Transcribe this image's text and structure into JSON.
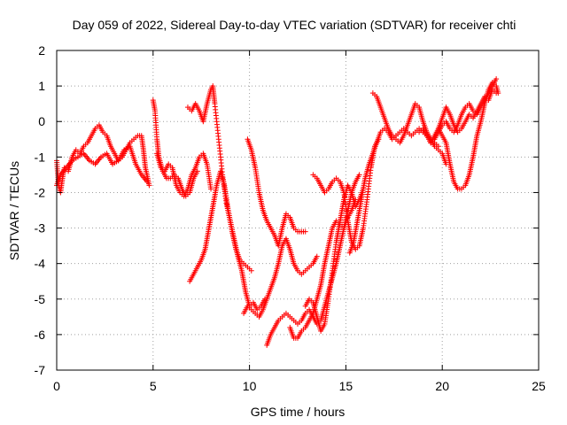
{
  "chart_data": {
    "type": "scatter",
    "title": "Day 059 of 2022, Sidereal Day-to-day VTEC variation (SDTVAR) for receiver chti",
    "xlabel": "GPS time / hours",
    "ylabel": "SDTVAR / TECUs",
    "xlim": [
      0,
      25
    ],
    "ylim": [
      -7,
      2
    ],
    "xticks": [
      0,
      5,
      10,
      15,
      20,
      25
    ],
    "yticks": [
      -7,
      -6,
      -5,
      -4,
      -3,
      -2,
      -1,
      0,
      1,
      2
    ],
    "grid": true,
    "marker": "+",
    "color": "#ff0000",
    "series": [
      {
        "x": [
          0.0,
          0.1,
          0.2,
          0.3,
          0.4,
          0.6,
          0.8,
          1.0,
          1.2,
          1.4,
          1.6,
          1.8,
          2.0,
          2.2,
          2.4,
          2.6,
          2.8,
          3.0,
          3.2,
          3.4,
          3.6,
          3.8,
          4.0,
          4.2,
          4.4,
          4.5,
          4.6,
          4.8
        ],
        "y": [
          -1.1,
          -1.8,
          -2.0,
          -1.6,
          -1.3,
          -1.4,
          -1.0,
          -0.8,
          -0.9,
          -0.7,
          -0.6,
          -0.4,
          -0.2,
          -0.1,
          -0.3,
          -0.4,
          -0.7,
          -0.9,
          -1.1,
          -1.0,
          -0.8,
          -0.6,
          -0.5,
          -0.4,
          -0.4,
          -0.8,
          -1.3,
          -1.8
        ]
      },
      {
        "x": [
          0.0,
          0.2,
          0.5,
          0.8,
          1.1,
          1.4,
          1.7,
          2.0,
          2.3,
          2.6,
          2.9,
          3.2,
          3.5,
          3.8,
          4.1,
          4.4,
          4.7
        ],
        "y": [
          -1.8,
          -1.5,
          -1.3,
          -1.1,
          -1.0,
          -0.9,
          -1.1,
          -1.2,
          -1.0,
          -0.9,
          -1.2,
          -1.1,
          -0.8,
          -0.7,
          -1.2,
          -1.5,
          -1.7
        ]
      },
      {
        "x": [
          5.0,
          5.1,
          5.2,
          5.3,
          5.5,
          5.7,
          5.9,
          6.1,
          6.3,
          6.5,
          6.7,
          6.9,
          7.1,
          7.3
        ],
        "y": [
          0.6,
          0.3,
          -0.5,
          -1.0,
          -1.4,
          -1.6,
          -1.6,
          -1.5,
          -1.6,
          -1.9,
          -2.1,
          -2.0,
          -1.6,
          -1.4
        ]
      },
      {
        "x": [
          5.2,
          5.4,
          5.6,
          5.8,
          6.0,
          6.2,
          6.4,
          6.6,
          6.8,
          7.0,
          7.2,
          7.4,
          7.6,
          7.8,
          8.0
        ],
        "y": [
          -0.9,
          -1.3,
          -1.4,
          -1.2,
          -1.3,
          -1.8,
          -2.0,
          -2.1,
          -1.9,
          -1.5,
          -1.3,
          -1.0,
          -0.9,
          -1.2,
          -1.9
        ]
      },
      {
        "x": [
          6.8,
          7.0,
          7.2,
          7.4,
          7.6,
          7.8,
          8.0,
          8.1,
          8.2,
          8.4,
          8.6,
          8.8,
          9.0,
          9.2,
          9.4,
          9.6,
          9.8,
          10.0,
          10.2,
          10.4,
          10.6,
          10.8
        ],
        "y": [
          0.4,
          0.3,
          0.5,
          0.3,
          0.0,
          0.5,
          0.9,
          1.0,
          0.5,
          -0.5,
          -1.5,
          -2.3,
          -2.8,
          -3.3,
          -3.8,
          -4.2,
          -4.8,
          -5.2,
          -5.1,
          -5.3,
          -5.2,
          -5.0
        ]
      },
      {
        "x": [
          6.9,
          7.1,
          7.3,
          7.5,
          7.7,
          7.9,
          8.1,
          8.3,
          8.5,
          8.7,
          8.9,
          9.1,
          9.3,
          9.5,
          9.7,
          9.9,
          10.1
        ],
        "y": [
          -4.5,
          -4.3,
          -4.1,
          -3.9,
          -3.6,
          -3.0,
          -2.4,
          -1.8,
          -1.4,
          -1.8,
          -2.5,
          -3.1,
          -3.6,
          -3.9,
          -4.0,
          -4.1,
          -4.2
        ]
      },
      {
        "x": [
          9.9,
          10.1,
          10.3,
          10.5,
          10.7,
          10.9,
          11.1,
          11.3,
          11.5,
          11.7,
          11.9,
          12.1,
          12.3,
          12.5,
          12.7,
          12.9
        ],
        "y": [
          -0.5,
          -0.8,
          -1.3,
          -2.0,
          -2.5,
          -2.8,
          -3.0,
          -3.2,
          -3.5,
          -3.0,
          -2.6,
          -2.7,
          -3.0,
          -3.1,
          -3.1,
          -3.1
        ]
      },
      {
        "x": [
          9.7,
          9.9,
          10.1,
          10.3,
          10.5,
          10.7,
          10.9,
          11.1,
          11.3,
          11.5,
          11.7,
          11.9,
          12.1,
          12.3,
          12.5,
          12.7,
          12.9,
          13.1,
          13.3,
          13.5
        ],
        "y": [
          -5.4,
          -5.2,
          -5.3,
          -5.4,
          -5.5,
          -5.3,
          -5.0,
          -4.7,
          -4.4,
          -4.0,
          -3.5,
          -3.3,
          -3.6,
          -4.0,
          -4.2,
          -4.3,
          -4.2,
          -4.1,
          -4.0,
          -3.8
        ]
      },
      {
        "x": [
          10.9,
          11.1,
          11.3,
          11.5,
          11.7,
          11.9,
          12.1,
          12.3,
          12.5,
          12.7,
          12.9,
          13.1,
          13.3,
          13.5,
          13.7,
          13.9,
          14.1,
          14.3,
          14.5,
          14.7,
          14.9,
          15.1,
          15.3,
          15.5,
          15.7
        ],
        "y": [
          -6.3,
          -6.0,
          -5.8,
          -5.6,
          -5.5,
          -5.4,
          -5.5,
          -5.6,
          -5.7,
          -5.6,
          -5.4,
          -5.3,
          -5.5,
          -5.7,
          -5.6,
          -5.2,
          -4.8,
          -4.4,
          -4.0,
          -3.5,
          -3.0,
          -2.5,
          -2.0,
          -1.7,
          -1.5
        ]
      },
      {
        "x": [
          12.1,
          12.3,
          12.5,
          12.7,
          12.9,
          13.1,
          13.3,
          13.5,
          13.7,
          13.9,
          14.1,
          14.3,
          14.5,
          14.7,
          14.9,
          15.1,
          15.3,
          15.5
        ],
        "y": [
          -5.8,
          -6.1,
          -6.1,
          -5.9,
          -5.8,
          -5.6,
          -5.4,
          -5.0,
          -4.6,
          -4.0,
          -3.5,
          -3.0,
          -2.8,
          -2.9,
          -3.0,
          -2.7,
          -2.5,
          -2.2
        ]
      },
      {
        "x": [
          12.9,
          13.1,
          13.3,
          13.5,
          13.7,
          13.9,
          14.1,
          14.3,
          14.5,
          14.7,
          14.9,
          15.1,
          15.3,
          15.5,
          15.7,
          15.9
        ],
        "y": [
          -5.2,
          -5.0,
          -5.1,
          -5.5,
          -5.9,
          -5.7,
          -5.0,
          -4.2,
          -3.4,
          -2.8,
          -2.2,
          -1.8,
          -2.0,
          -2.4,
          -2.2,
          -1.9
        ]
      },
      {
        "x": [
          13.3,
          13.5,
          13.7,
          13.9,
          14.1,
          14.3,
          14.5,
          14.7,
          14.9,
          15.1,
          15.3,
          15.5,
          15.7,
          15.9,
          16.1,
          16.3,
          16.5,
          16.7
        ],
        "y": [
          -1.5,
          -1.6,
          -1.8,
          -2.0,
          -1.9,
          -1.7,
          -1.6,
          -1.7,
          -2.0,
          -2.8,
          -3.4,
          -3.6,
          -3.5,
          -3.0,
          -2.2,
          -1.3,
          -0.7,
          -0.5
        ]
      },
      {
        "x": [
          15.2,
          15.4,
          15.6,
          15.8,
          16.0,
          16.2,
          16.4,
          16.6,
          16.8,
          17.0,
          17.2,
          17.4,
          17.6,
          17.8,
          18.0,
          18.2,
          18.4,
          18.6,
          18.8,
          19.0,
          19.2,
          19.4,
          19.6,
          19.8
        ],
        "y": [
          -3.7,
          -3.4,
          -2.8,
          -2.2,
          -1.6,
          -1.2,
          -0.9,
          -0.6,
          -0.3,
          -0.2,
          -0.3,
          -0.5,
          -0.4,
          -0.3,
          -0.2,
          -0.3,
          -0.4,
          -0.3,
          -0.2,
          -0.3,
          -0.4,
          -0.5,
          -0.6,
          -0.7
        ]
      },
      {
        "x": [
          16.4,
          16.6,
          16.8,
          17.0,
          17.2,
          17.4,
          17.6,
          17.8,
          18.0,
          18.2,
          18.4,
          18.6,
          18.8,
          19.0,
          19.2,
          19.4,
          19.6,
          19.8,
          20.0,
          20.2
        ],
        "y": [
          0.8,
          0.7,
          0.4,
          0.1,
          -0.2,
          -0.4,
          -0.5,
          -0.6,
          -0.4,
          -0.1,
          0.2,
          0.5,
          0.4,
          0.0,
          -0.3,
          -0.5,
          -0.7,
          -0.8,
          -0.9,
          -1.2
        ]
      },
      {
        "x": [
          19.4,
          19.6,
          19.8,
          20.0,
          20.2,
          20.4,
          20.6,
          20.8,
          21.0,
          21.2,
          21.4,
          21.6,
          21.8,
          22.0,
          22.2,
          22.4,
          22.6,
          22.8
        ],
        "y": [
          -0.6,
          -0.4,
          -0.2,
          0.1,
          0.4,
          0.2,
          -0.1,
          -0.3,
          -0.2,
          0.0,
          0.2,
          0.1,
          0.3,
          0.5,
          0.7,
          0.6,
          0.9,
          0.8
        ]
      },
      {
        "x": [
          19.8,
          20.0,
          20.2,
          20.4,
          20.6,
          20.8,
          21.0,
          21.2,
          21.4,
          21.6,
          21.8,
          22.0,
          22.2,
          22.4,
          22.6,
          22.8,
          22.9
        ],
        "y": [
          -0.2,
          -0.4,
          -0.6,
          -1.2,
          -1.7,
          -1.9,
          -1.9,
          -1.8,
          -1.5,
          -1.0,
          -0.4,
          0.0,
          0.5,
          0.9,
          1.1,
          1.0,
          0.8
        ]
      },
      {
        "x": [
          18.8,
          19.0,
          19.2,
          19.4,
          19.6,
          19.8,
          20.0,
          20.2,
          20.4,
          20.6,
          20.8,
          21.0,
          21.2,
          21.4,
          21.6,
          21.8,
          22.0,
          22.2,
          22.4,
          22.6,
          22.8
        ],
        "y": [
          -0.3,
          -0.2,
          -0.4,
          -0.6,
          -0.5,
          -0.3,
          -0.1,
          0.0,
          -0.2,
          -0.3,
          -0.1,
          0.2,
          0.4,
          0.5,
          0.3,
          0.2,
          0.4,
          0.6,
          0.8,
          1.0,
          1.2
        ]
      }
    ]
  }
}
